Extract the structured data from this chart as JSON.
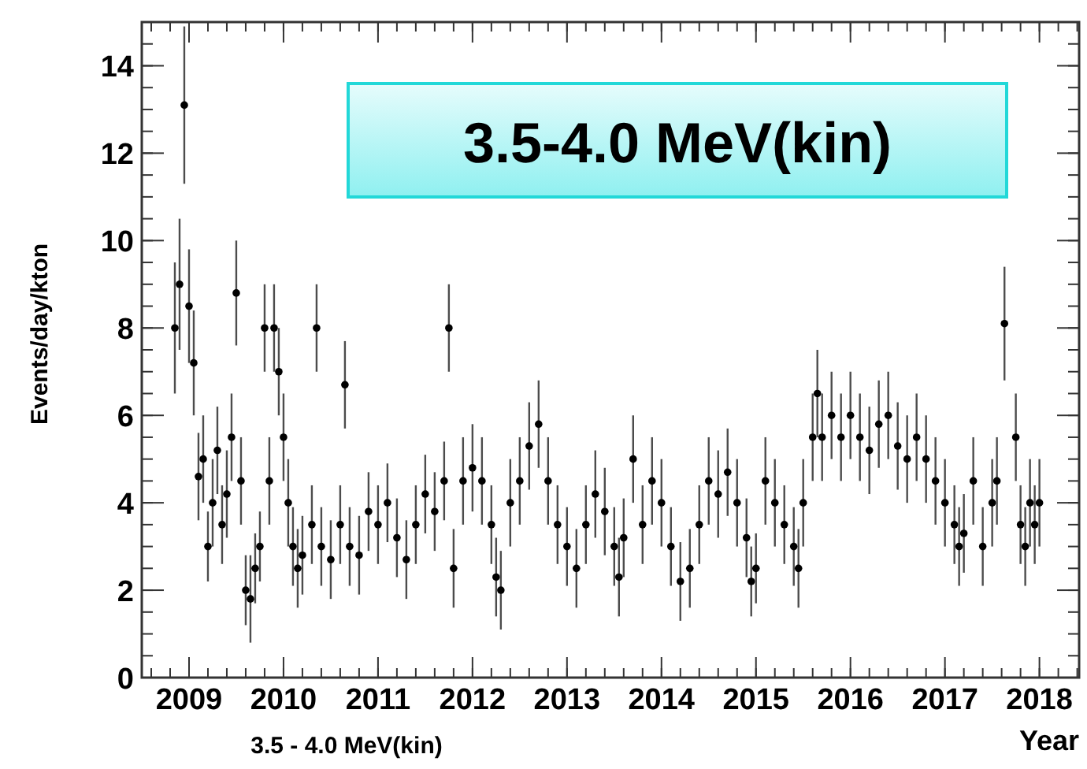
{
  "chart_data": {
    "type": "scatter",
    "title": "3.5-4.0 MeV(kin)",
    "xlabel": "Year",
    "ylabel": "Events/day/kton",
    "annotations": [
      "3.5 - 4.0 MeV(kin)"
    ],
    "xlim": [
      2008.5,
      2018.42
    ],
    "xticks": [
      2009,
      2010,
      2011,
      2012,
      2013,
      2014,
      2015,
      2016,
      2017,
      2018
    ],
    "ylim": [
      0,
      15
    ],
    "yticks": [
      0,
      2,
      4,
      6,
      8,
      10,
      12,
      14
    ],
    "marker": "circle",
    "series": [
      {
        "color": "#000000",
        "x": [
          2008.85,
          2008.9,
          2008.95,
          2009.0,
          2009.05,
          2009.1,
          2009.15,
          2009.2,
          2009.25,
          2009.3,
          2009.35,
          2009.4,
          2009.45,
          2009.5,
          2009.55,
          2009.6,
          2009.65,
          2009.7,
          2009.75,
          2009.8,
          2009.85,
          2009.9,
          2009.95,
          2010.0,
          2010.05,
          2010.1,
          2010.15,
          2010.2,
          2010.3,
          2010.35,
          2010.4,
          2010.5,
          2010.6,
          2010.65,
          2010.7,
          2010.8,
          2010.9,
          2011.0,
          2011.1,
          2011.2,
          2011.3,
          2011.4,
          2011.5,
          2011.6,
          2011.7,
          2011.75,
          2011.8,
          2011.9,
          2012.0,
          2012.1,
          2012.2,
          2012.25,
          2012.3,
          2012.4,
          2012.5,
          2012.6,
          2012.7,
          2012.8,
          2012.9,
          2013.0,
          2013.1,
          2013.2,
          2013.3,
          2013.4,
          2013.5,
          2013.55,
          2013.6,
          2013.7,
          2013.8,
          2013.9,
          2014.0,
          2014.1,
          2014.2,
          2014.3,
          2014.4,
          2014.5,
          2014.6,
          2014.7,
          2014.8,
          2014.9,
          2014.95,
          2015.0,
          2015.1,
          2015.2,
          2015.3,
          2015.4,
          2015.45,
          2015.5,
          2015.6,
          2015.65,
          2015.7,
          2015.8,
          2015.9,
          2016.0,
          2016.1,
          2016.2,
          2016.3,
          2016.4,
          2016.5,
          2016.6,
          2016.7,
          2016.8,
          2016.9,
          2017.0,
          2017.1,
          2017.15,
          2017.2,
          2017.3,
          2017.4,
          2017.5,
          2017.55,
          2017.63,
          2017.75,
          2017.8,
          2017.85,
          2017.9,
          2017.95,
          2018.0
        ],
        "values": [
          8.0,
          9.0,
          13.1,
          8.5,
          7.2,
          4.6,
          5.0,
          3.0,
          4.0,
          5.2,
          3.5,
          4.2,
          5.5,
          8.8,
          4.5,
          2.0,
          1.8,
          2.5,
          3.0,
          8.0,
          4.5,
          8.0,
          7.0,
          5.5,
          4.0,
          3.0,
          2.5,
          2.8,
          3.5,
          8.0,
          3.0,
          2.7,
          3.5,
          6.7,
          3.0,
          2.8,
          3.8,
          3.5,
          4.0,
          3.2,
          2.7,
          3.5,
          4.2,
          3.8,
          4.5,
          8.0,
          2.5,
          4.5,
          4.8,
          4.5,
          3.5,
          2.3,
          2.0,
          4.0,
          4.5,
          5.3,
          5.8,
          4.5,
          3.5,
          3.0,
          2.5,
          3.5,
          4.2,
          3.8,
          3.0,
          2.3,
          3.2,
          5.0,
          3.5,
          4.5,
          4.0,
          3.0,
          2.2,
          2.5,
          3.5,
          4.5,
          4.2,
          4.7,
          4.0,
          3.2,
          2.2,
          2.5,
          4.5,
          4.0,
          3.5,
          3.0,
          2.5,
          4.0,
          5.5,
          6.5,
          5.5,
          6.0,
          5.5,
          6.0,
          5.5,
          5.2,
          5.8,
          6.0,
          5.3,
          5.0,
          5.5,
          5.0,
          4.5,
          4.0,
          3.5,
          3.0,
          3.3,
          4.5,
          3.0,
          4.0,
          4.5,
          8.1,
          5.5,
          3.5,
          3.0,
          4.0,
          3.5,
          4.0
        ],
        "errors": [
          1.5,
          1.5,
          1.8,
          1.3,
          1.2,
          1.0,
          1.0,
          0.8,
          1.0,
          1.0,
          0.9,
          1.0,
          1.0,
          1.2,
          1.0,
          0.8,
          1.0,
          0.8,
          0.8,
          1.0,
          1.0,
          1.0,
          1.0,
          1.0,
          1.0,
          0.9,
          0.9,
          0.9,
          0.9,
          1.0,
          0.9,
          0.9,
          0.9,
          1.0,
          0.9,
          0.9,
          0.9,
          0.9,
          0.9,
          0.9,
          0.9,
          0.9,
          0.9,
          0.9,
          0.9,
          1.0,
          0.9,
          1.0,
          1.0,
          1.0,
          0.9,
          0.9,
          0.9,
          1.0,
          1.0,
          1.0,
          1.0,
          1.0,
          0.9,
          0.9,
          0.9,
          0.9,
          1.0,
          1.0,
          0.9,
          0.9,
          0.9,
          1.0,
          0.9,
          1.0,
          1.0,
          0.9,
          0.9,
          0.9,
          0.9,
          1.0,
          1.0,
          1.0,
          1.0,
          0.9,
          0.8,
          0.8,
          1.0,
          1.0,
          0.9,
          0.9,
          0.9,
          1.0,
          1.0,
          1.0,
          1.0,
          1.0,
          1.0,
          1.0,
          1.0,
          1.0,
          1.0,
          1.0,
          1.0,
          1.0,
          1.0,
          1.0,
          1.0,
          1.0,
          0.9,
          0.9,
          0.9,
          1.0,
          0.9,
          1.0,
          1.0,
          1.3,
          1.0,
          0.9,
          0.9,
          1.0,
          0.9,
          1.0
        ]
      }
    ]
  }
}
